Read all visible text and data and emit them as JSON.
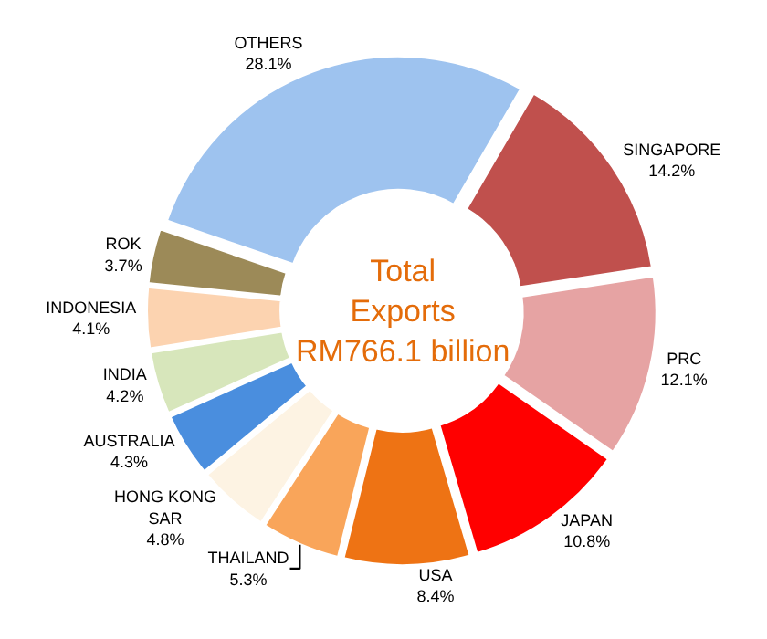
{
  "chart_data": {
    "type": "donut",
    "categories": [
      "OTHERS",
      "SINGAPORE",
      "PRC",
      "JAPAN",
      "USA",
      "THAILAND",
      "HONG KONG SAR",
      "AUSTRALIA",
      "INDIA",
      "INDONESIA",
      "ROK"
    ],
    "values": [
      28.1,
      14.2,
      12.1,
      10.8,
      8.4,
      5.3,
      4.8,
      4.3,
      4.2,
      4.1,
      3.7
    ],
    "value_labels": [
      "28.1%",
      "14.2%",
      "12.1%",
      "10.8%",
      "8.4%",
      "5.3%",
      "4.8%",
      "4.3%",
      "4.2%",
      "4.1%",
      "3.7%"
    ],
    "colors": [
      "#9ec3ef",
      "#c0504d",
      "#e6a3a3",
      "#ff0000",
      "#ee7314",
      "#f9a55a",
      "#fdf3e3",
      "#4a8ede",
      "#d7e6bb",
      "#fcd3b0",
      "#9c8a58"
    ],
    "annotations": [
      "Total\nExports\nRM766.1 billion"
    ],
    "legend": false
  }
}
